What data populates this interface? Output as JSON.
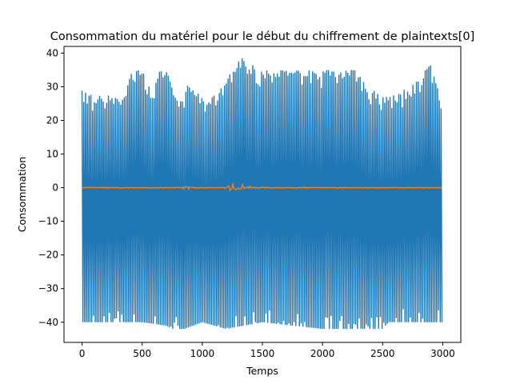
{
  "chart_data": {
    "type": "line",
    "title": "Consommation du matériel pour le début du chiffrement de plaintexts[0]",
    "xlabel": "Temps",
    "ylabel": "Consommation",
    "xlim": [
      -150,
      3150
    ],
    "ylim": [
      -46,
      42
    ],
    "xticks": [
      0,
      500,
      1000,
      1500,
      2000,
      2500,
      3000
    ],
    "yticks": [
      -40,
      -30,
      -20,
      -10,
      0,
      10,
      20,
      30,
      40
    ],
    "xtick_labels": [
      "0",
      "500",
      "1000",
      "1500",
      "2000",
      "2500",
      "3000"
    ],
    "ytick_labels": [
      "−40",
      "−30",
      "−20",
      "−10",
      "0",
      "10",
      "20",
      "30",
      "40"
    ],
    "grid": false,
    "legend": "none",
    "series": [
      {
        "color": "#1f77b4",
        "x_range": [
          0,
          3000
        ],
        "upper_envelope": [
          [
            0,
            30
          ],
          [
            100,
            27
          ],
          [
            200,
            28
          ],
          [
            300,
            27
          ],
          [
            370,
            28
          ],
          [
            400,
            35
          ],
          [
            500,
            35
          ],
          [
            580,
            28
          ],
          [
            640,
            35
          ],
          [
            700,
            35
          ],
          [
            760,
            29
          ],
          [
            850,
            26
          ],
          [
            870,
            30
          ],
          [
            900,
            31
          ],
          [
            1000,
            26.5
          ],
          [
            1100,
            27.5
          ],
          [
            1200,
            32
          ],
          [
            1280,
            37
          ],
          [
            1340,
            39
          ],
          [
            1400,
            37
          ],
          [
            1480,
            35
          ],
          [
            1600,
            35
          ],
          [
            1700,
            35
          ],
          [
            1800,
            35
          ],
          [
            1900,
            35
          ],
          [
            2000,
            35
          ],
          [
            2100,
            35
          ],
          [
            2200,
            35
          ],
          [
            2300,
            35
          ],
          [
            2400,
            28
          ],
          [
            2450,
            30
          ],
          [
            2500,
            27
          ],
          [
            2600,
            28
          ],
          [
            2700,
            30
          ],
          [
            2800,
            33
          ],
          [
            2900,
            37
          ],
          [
            3000,
            25
          ]
        ],
        "lower_envelope": [
          [
            0,
            -40
          ],
          [
            500,
            -40
          ],
          [
            700,
            -41
          ],
          [
            750,
            -42
          ],
          [
            850,
            -42
          ],
          [
            1000,
            -40
          ],
          [
            1200,
            -42
          ],
          [
            1500,
            -40
          ],
          [
            2000,
            -42
          ],
          [
            2400,
            -42
          ],
          [
            2500,
            -42
          ],
          [
            2550,
            -40
          ],
          [
            3000,
            -40
          ]
        ]
      },
      {
        "color": "#ff7f0e",
        "x_range": [
          0,
          3000
        ],
        "baseline": 0,
        "bumps": [
          [
            860,
            1.5
          ],
          [
            880,
            1.2
          ],
          [
            1210,
            2.5
          ],
          [
            1240,
            3.8
          ],
          [
            1270,
            3.5
          ],
          [
            1300,
            3.5
          ],
          [
            1330,
            2
          ],
          [
            1400,
            0.6
          ],
          [
            1500,
            0.6
          ]
        ]
      }
    ]
  }
}
